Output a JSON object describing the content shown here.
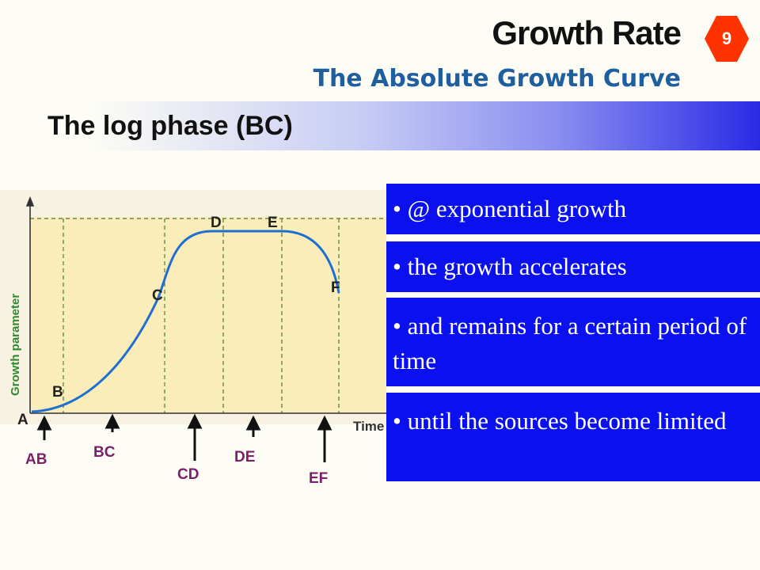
{
  "header": {
    "title": "Growth Rate",
    "subtitle": "The Absolute Growth Curve",
    "page_number": "9"
  },
  "section": {
    "title": "The log phase (BC)"
  },
  "diagram": {
    "y_axis_label": "Growth parameter",
    "x_axis_label": "Time",
    "points": [
      "A",
      "B",
      "C",
      "D",
      "E",
      "F"
    ],
    "phases": [
      "AB",
      "BC",
      "CD",
      "DE",
      "EF"
    ]
  },
  "bullets": [
    "• @ exponential growth",
    "• the growth accelerates",
    "• and remains for a certain period of time",
    "• until the sources become limited"
  ],
  "colors": {
    "title_blue": "#1f5f9f",
    "bullet_bg": "#0b10ee",
    "phase_label": "#7b1f6a",
    "badge_fill": "#ff3300",
    "chart_bg": "#fbedb9"
  }
}
